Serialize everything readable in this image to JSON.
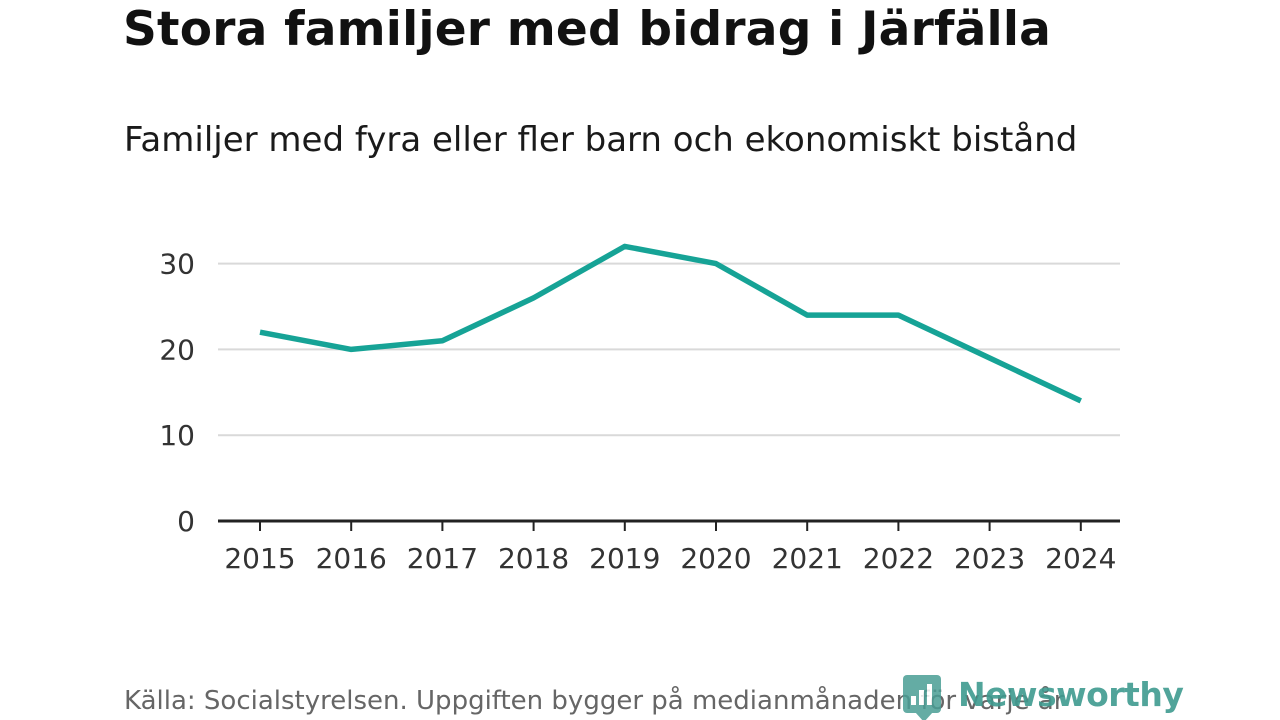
{
  "header": {
    "title": "Stora familjer med bidrag i Järfälla"
  },
  "chart_data": {
    "type": "line",
    "title": "Stora familjer med bidrag i Järfälla",
    "subtitle": "Familjer med fyra eller fler barn och ekonomiskt bistånd",
    "xlabel": "",
    "ylabel": "",
    "x": [
      "2015",
      "2016",
      "2017",
      "2018",
      "2019",
      "2020",
      "2021",
      "2022",
      "2023",
      "2024"
    ],
    "series": [
      {
        "name": "Familjer med fyra eller fler barn och ekonomiskt bistånd",
        "values": [
          22,
          20,
          21,
          26,
          32,
          30,
          24,
          24,
          19,
          14
        ],
        "color": "#16a396"
      }
    ],
    "ylim": [
      0,
      35
    ],
    "yticks": [
      "0",
      "10",
      "20",
      "30"
    ],
    "grid": true,
    "legend": "none"
  },
  "footer": {
    "source": "Källa: Socialstyrelsen. Uppgiften bygger på medianmånaden för varje år",
    "brand": "Newsworthy",
    "brand_icon": "newsworthy-logo-icon"
  },
  "colors": {
    "line": "#16a396",
    "grid": "#d9d9d9",
    "axis": "#222222",
    "brand": "#3f9b90"
  }
}
